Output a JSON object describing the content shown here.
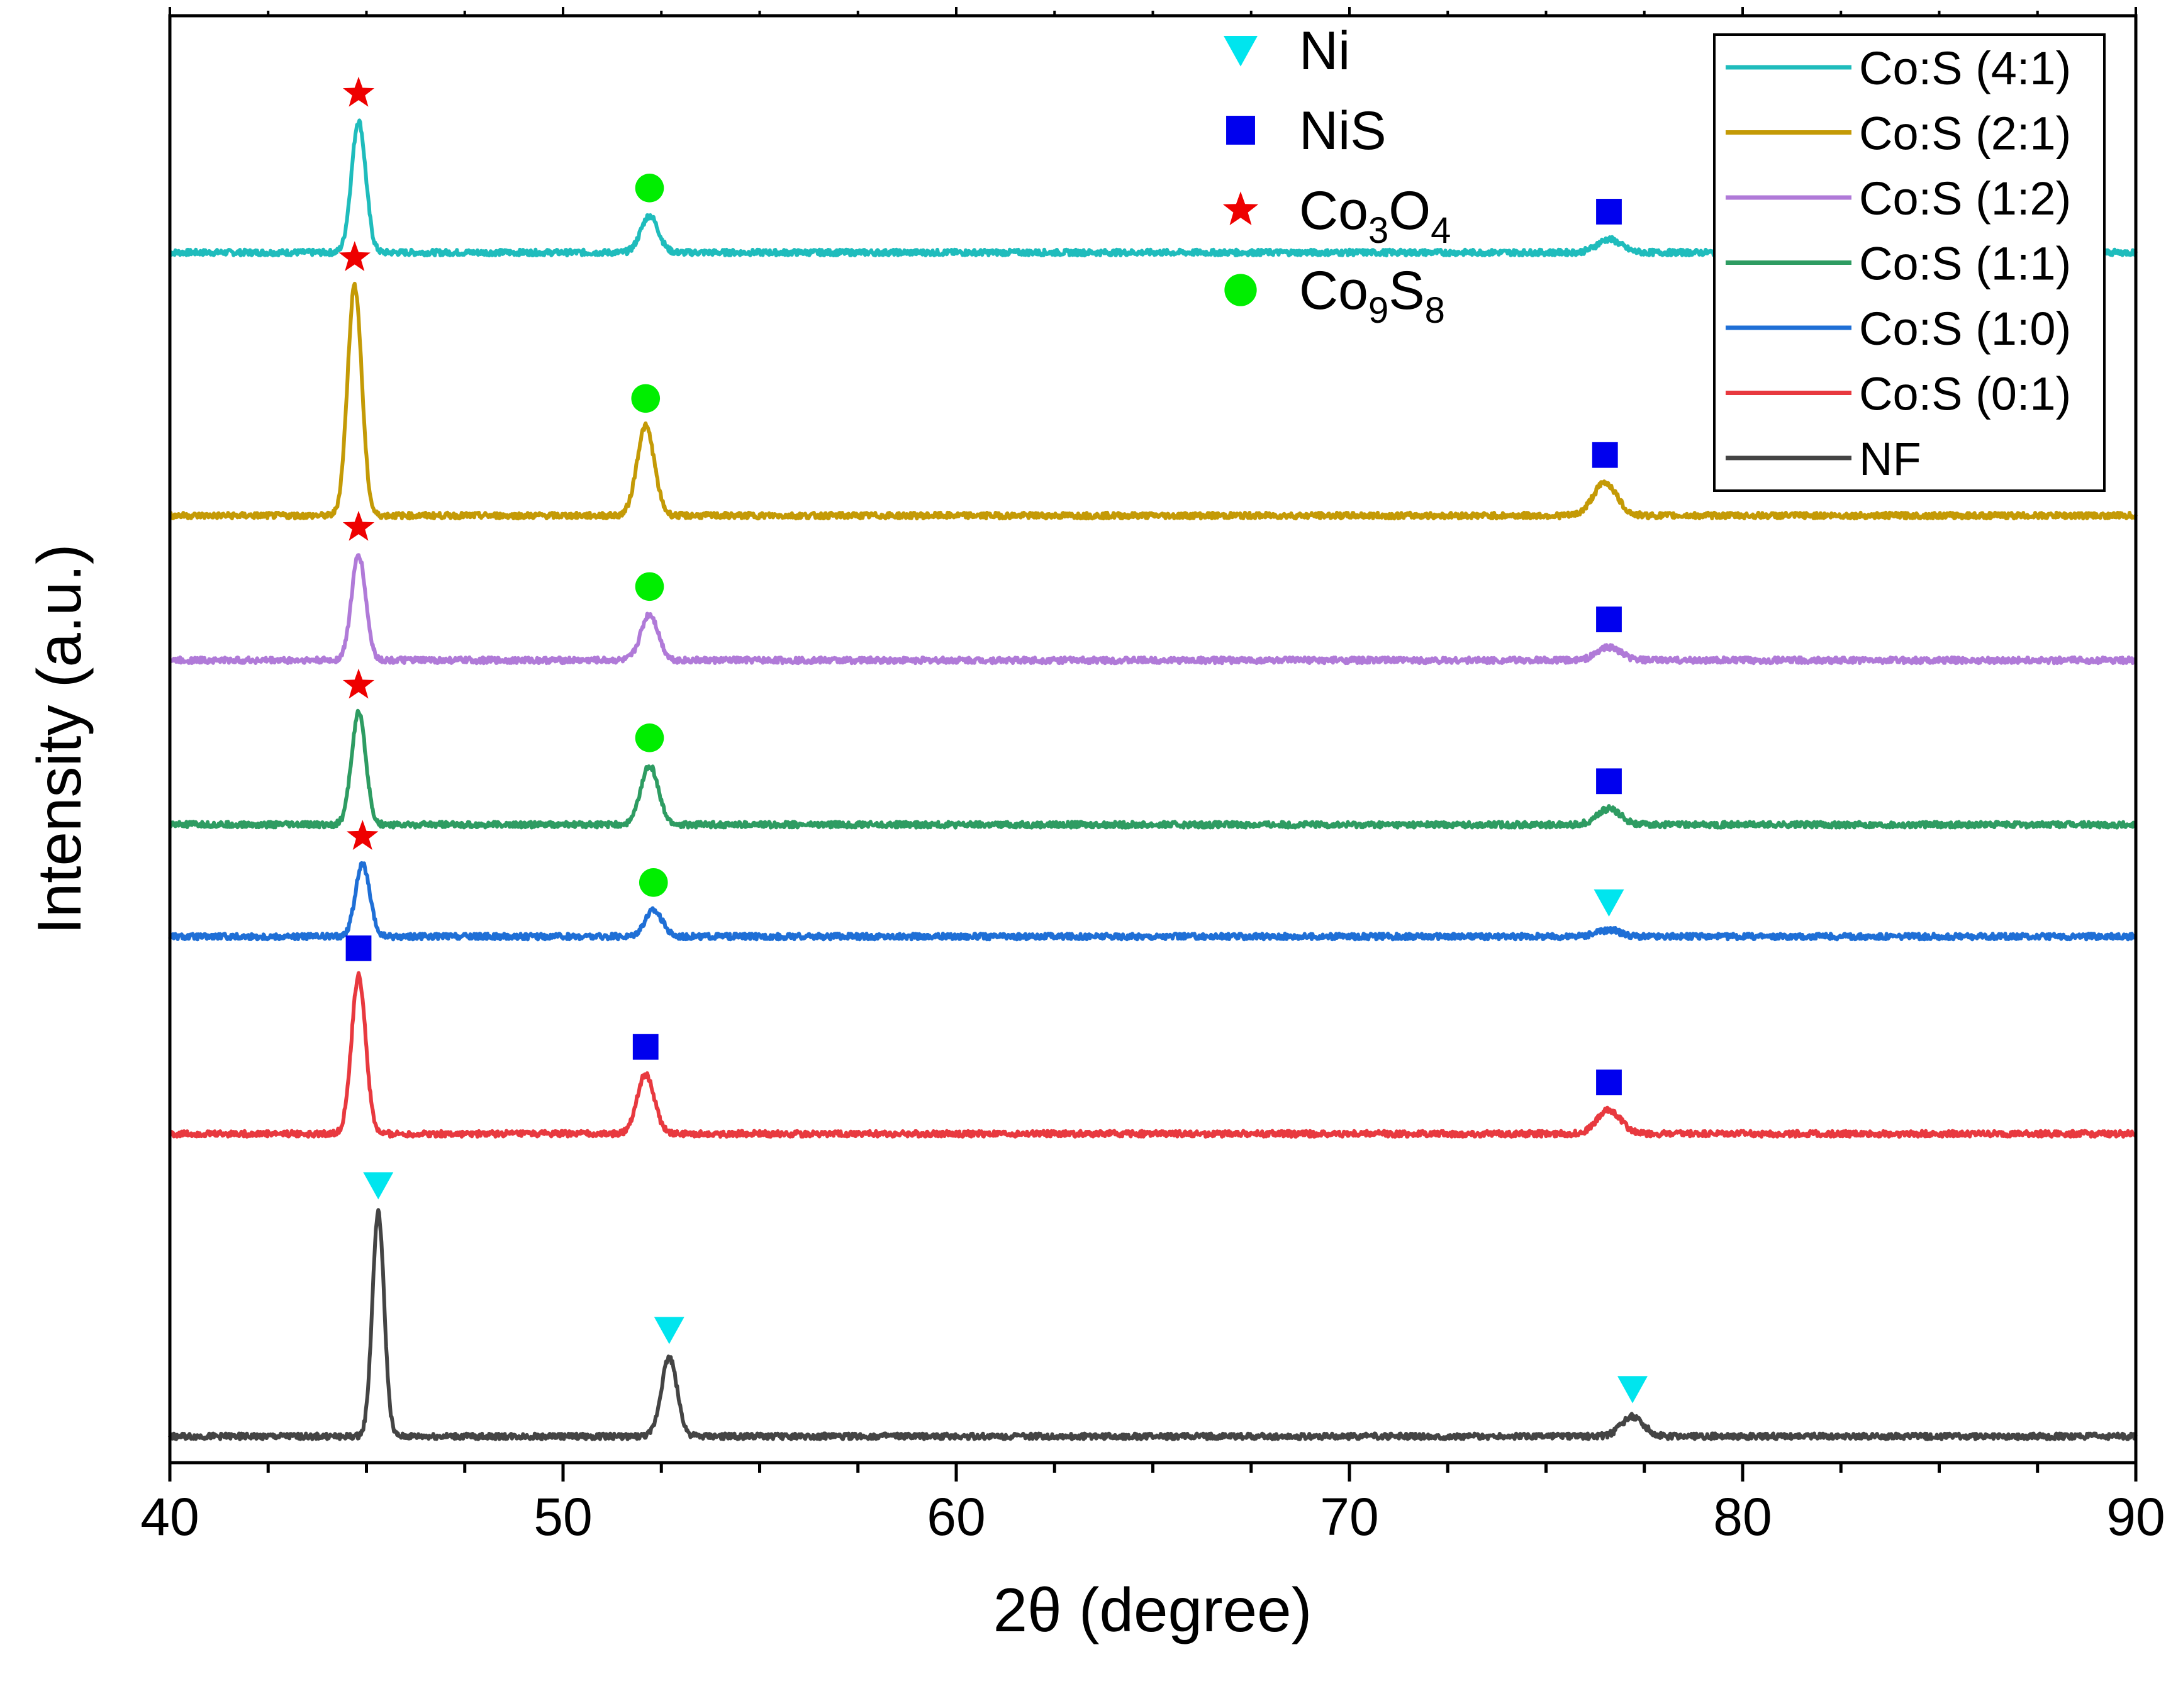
{
  "chart_data": {
    "type": "line",
    "title": "",
    "xlabel": "2θ (degree)",
    "ylabel": "Intensity (a.u.)",
    "xlim": [
      40,
      90
    ],
    "xticks": [
      40,
      50,
      60,
      70,
      80,
      90
    ],
    "ylim": [
      0,
      11
    ],
    "yticks_shown": false,
    "series": [
      {
        "name": "Co:S (4:1)",
        "color": "#1fbcbc",
        "baseline": 9.2,
        "peaks": [
          {
            "x": 44.8,
            "h": 1.0,
            "w": 0.18
          },
          {
            "x": 52.2,
            "h": 0.28,
            "w": 0.22
          },
          {
            "x": 76.6,
            "h": 0.1,
            "w": 0.3
          }
        ]
      },
      {
        "name": "Co:S (2:1)",
        "color": "#c49a06",
        "baseline": 7.2,
        "peaks": [
          {
            "x": 44.7,
            "h": 1.75,
            "w": 0.18
          },
          {
            "x": 52.1,
            "h": 0.68,
            "w": 0.22
          },
          {
            "x": 76.5,
            "h": 0.25,
            "w": 0.3
          }
        ]
      },
      {
        "name": "Co:S (1:2)",
        "color": "#b07ad8",
        "baseline": 6.1,
        "peaks": [
          {
            "x": 44.8,
            "h": 0.8,
            "w": 0.18
          },
          {
            "x": 52.2,
            "h": 0.35,
            "w": 0.22
          },
          {
            "x": 76.6,
            "h": 0.1,
            "w": 0.3
          }
        ]
      },
      {
        "name": "Co:S (1:1)",
        "color": "#2e9c62",
        "baseline": 4.85,
        "peaks": [
          {
            "x": 44.8,
            "h": 0.85,
            "w": 0.18
          },
          {
            "x": 52.2,
            "h": 0.45,
            "w": 0.22
          },
          {
            "x": 76.6,
            "h": 0.12,
            "w": 0.3
          }
        ]
      },
      {
        "name": "Co:S (1:0)",
        "color": "#1f6fd6",
        "baseline": 4.0,
        "peaks": [
          {
            "x": 44.9,
            "h": 0.55,
            "w": 0.18
          },
          {
            "x": 52.3,
            "h": 0.2,
            "w": 0.22
          },
          {
            "x": 76.6,
            "h": 0.05,
            "w": 0.3
          }
        ]
      },
      {
        "name": "Co:S (0:1)",
        "color": "#e8393f",
        "baseline": 2.5,
        "peaks": [
          {
            "x": 44.8,
            "h": 1.2,
            "w": 0.18
          },
          {
            "x": 52.1,
            "h": 0.45,
            "w": 0.22
          },
          {
            "x": 76.6,
            "h": 0.18,
            "w": 0.3
          }
        ]
      },
      {
        "name": "NF",
        "color": "#444444",
        "baseline": 0.2,
        "peaks": [
          {
            "x": 45.3,
            "h": 1.7,
            "w": 0.15
          },
          {
            "x": 52.7,
            "h": 0.6,
            "w": 0.2
          },
          {
            "x": 77.2,
            "h": 0.15,
            "w": 0.28
          }
        ]
      }
    ],
    "marker_legend": [
      {
        "symbol": "triangle",
        "color": "#00e5ee",
        "label_main": "Ni",
        "label_sub": ""
      },
      {
        "symbol": "square",
        "color": "#0000ee",
        "label_main": "NiS",
        "label_sub": ""
      },
      {
        "symbol": "star",
        "color": "#ee0000",
        "label_parts": [
          "Co",
          "3",
          "O",
          "4"
        ]
      },
      {
        "symbol": "circle",
        "color": "#00ee00",
        "label_parts": [
          "Co",
          "9",
          "S",
          "8"
        ]
      }
    ],
    "peak_markers": [
      {
        "series": "Co:S (4:1)",
        "x": 44.8,
        "symbol": "star"
      },
      {
        "series": "Co:S (4:1)",
        "x": 52.2,
        "symbol": "circle"
      },
      {
        "series": "Co:S (4:1)",
        "x": 76.6,
        "symbol": "square"
      },
      {
        "series": "Co:S (2:1)",
        "x": 44.7,
        "symbol": "star"
      },
      {
        "series": "Co:S (2:1)",
        "x": 52.1,
        "symbol": "circle"
      },
      {
        "series": "Co:S (2:1)",
        "x": 76.5,
        "symbol": "square"
      },
      {
        "series": "Co:S (1:2)",
        "x": 44.8,
        "symbol": "star"
      },
      {
        "series": "Co:S (1:2)",
        "x": 52.2,
        "symbol": "circle"
      },
      {
        "series": "Co:S (1:2)",
        "x": 76.6,
        "symbol": "square"
      },
      {
        "series": "Co:S (1:1)",
        "x": 44.8,
        "symbol": "star"
      },
      {
        "series": "Co:S (1:1)",
        "x": 52.2,
        "symbol": "circle"
      },
      {
        "series": "Co:S (1:1)",
        "x": 76.6,
        "symbol": "square"
      },
      {
        "series": "Co:S (1:0)",
        "x": 44.9,
        "symbol": "star"
      },
      {
        "series": "Co:S (1:0)",
        "x": 52.3,
        "symbol": "circle"
      },
      {
        "series": "Co:S (1:0)",
        "x": 76.6,
        "symbol": "triangle"
      },
      {
        "series": "Co:S (0:1)",
        "x": 44.8,
        "symbol": "square"
      },
      {
        "series": "Co:S (0:1)",
        "x": 52.1,
        "symbol": "square"
      },
      {
        "series": "Co:S (0:1)",
        "x": 76.6,
        "symbol": "square"
      },
      {
        "series": "NF",
        "x": 45.3,
        "symbol": "triangle"
      },
      {
        "series": "NF",
        "x": 52.7,
        "symbol": "triangle"
      },
      {
        "series": "NF",
        "x": 77.2,
        "symbol": "triangle"
      }
    ]
  }
}
